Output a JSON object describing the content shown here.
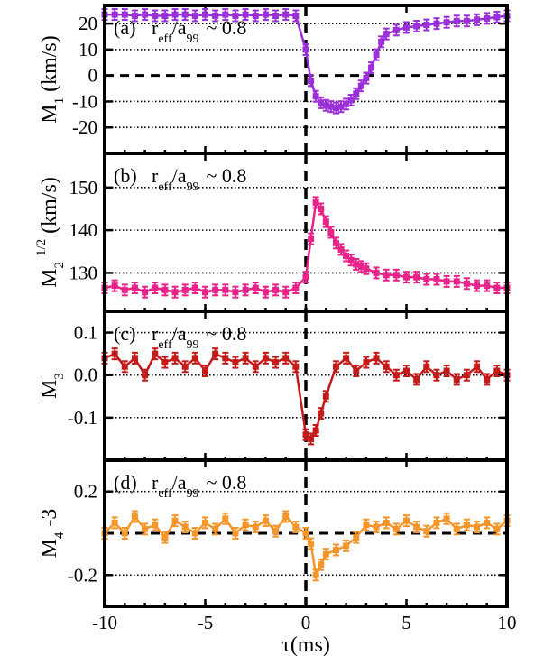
{
  "chart_data": {
    "type": "line",
    "xlabel": "τ(ms)",
    "xlim": [
      -10,
      10
    ],
    "x_ticks": [
      -10,
      -5,
      0,
      5,
      10
    ],
    "panels": [
      {
        "id": "a",
        "tag": "(a)",
        "ratio_text": "~ 0.8",
        "ylabel_main": "M",
        "ylabel_sub": "1",
        "ylabel_sup": "",
        "ylabel_unit": "(km/s)",
        "ylim": [
          -30,
          27
        ],
        "yticks": [
          -20,
          -10,
          0,
          10,
          20
        ],
        "grid_y": [
          -20,
          -10,
          10,
          20
        ],
        "zero_line": 0,
        "color": "#9b30d9",
        "series": {
          "name": "",
          "x": [
            -10,
            -9.5,
            -9,
            -8.5,
            -8,
            -7.5,
            -7,
            -6.5,
            -6,
            -5.5,
            -5,
            -4.5,
            -4,
            -3.5,
            -3,
            -2.5,
            -2,
            -1.5,
            -1,
            -0.5,
            0,
            0.25,
            0.5,
            0.75,
            1,
            1.25,
            1.5,
            1.75,
            2,
            2.25,
            2.5,
            2.75,
            3,
            3.25,
            3.5,
            3.75,
            4,
            4.5,
            5,
            5.5,
            6,
            6.5,
            7,
            7.5,
            8,
            8.5,
            9,
            9.5,
            10
          ],
          "y": [
            23.5,
            23.5,
            23.5,
            23,
            23.5,
            23,
            23,
            23.5,
            23.5,
            23,
            23.5,
            23,
            23.5,
            23,
            23.5,
            23,
            23.5,
            23,
            23.5,
            23,
            10,
            -2,
            -8,
            -10.5,
            -11.5,
            -12,
            -12.5,
            -12,
            -11,
            -9.5,
            -7,
            -4,
            -1,
            3,
            8,
            13,
            16,
            17.5,
            18.5,
            19,
            19.5,
            20,
            20.5,
            21,
            21,
            21.5,
            22,
            22.5,
            23
          ]
        }
      },
      {
        "id": "b",
        "tag": "(b)",
        "ratio_text": "~ 0.8",
        "ylabel_main": "M",
        "ylabel_sub": "2",
        "ylabel_sup": "1/2",
        "ylabel_unit": "(km/s)",
        "ylim": [
          121,
          158
        ],
        "yticks": [
          130,
          140,
          150
        ],
        "grid_y": [
          130,
          140,
          150
        ],
        "zero_line": null,
        "color": "#e8238a",
        "series": {
          "name": "",
          "x": [
            -10,
            -9.5,
            -9,
            -8.5,
            -8,
            -7.5,
            -7,
            -6.5,
            -6,
            -5.5,
            -5,
            -4.5,
            -4,
            -3.5,
            -3,
            -2.5,
            -2,
            -1.5,
            -1,
            -0.5,
            0,
            0.25,
            0.5,
            0.75,
            1,
            1.25,
            1.5,
            1.75,
            2,
            2.25,
            2.5,
            2.75,
            3,
            3.5,
            4,
            4.5,
            5,
            5.5,
            6,
            6.5,
            7,
            7.5,
            8,
            8.5,
            9,
            9.5,
            10
          ],
          "y": [
            126.5,
            127,
            126,
            126.5,
            125.5,
            126.5,
            126,
            125.5,
            126,
            126.5,
            125.5,
            126,
            126,
            125.5,
            126,
            126.5,
            125.5,
            126,
            125.5,
            126.5,
            129,
            138,
            146.5,
            145,
            142,
            139.5,
            137,
            135.5,
            134,
            133,
            132,
            131.5,
            131,
            130,
            129.5,
            129.5,
            129,
            129,
            128.5,
            128.5,
            128,
            128,
            127.5,
            127,
            127,
            126.5,
            126.5
          ]
        }
      },
      {
        "id": "c",
        "tag": "(c)",
        "ratio_text": "~ 0.8",
        "ylabel_main": "M",
        "ylabel_sub": "3",
        "ylabel_sup": "",
        "ylabel_unit": "",
        "ylim": [
          -0.2,
          0.15
        ],
        "yticks": [
          -0.1,
          0.0,
          0.1
        ],
        "tick_labels": [
          "-0.1",
          "0.0",
          "0.1"
        ],
        "grid_y": [
          -0.1,
          0.0,
          0.1
        ],
        "zero_line": null,
        "color": "#c41a1a",
        "series": {
          "name": "",
          "x": [
            -10,
            -9.5,
            -9,
            -8.5,
            -8,
            -7.5,
            -7,
            -6.5,
            -6,
            -5.5,
            -5,
            -4.5,
            -4,
            -3.5,
            -3,
            -2.5,
            -2,
            -1.5,
            -1,
            -0.5,
            0,
            0.25,
            0.5,
            0.75,
            1,
            1.5,
            2,
            2.5,
            3,
            3.5,
            4,
            4.5,
            5,
            5.5,
            6,
            6.5,
            7,
            7.5,
            8,
            8.5,
            9,
            9.5,
            10
          ],
          "y": [
            0.04,
            0.05,
            0.02,
            0.04,
            0.0,
            0.05,
            0.03,
            0.04,
            0.02,
            0.04,
            0.01,
            0.05,
            0.04,
            0.03,
            0.04,
            0.02,
            0.04,
            0.03,
            0.04,
            0.02,
            -0.14,
            -0.15,
            -0.13,
            -0.09,
            -0.05,
            0.02,
            0.04,
            0.01,
            0.03,
            0.04,
            0.02,
            0.0,
            0.01,
            -0.01,
            0.02,
            0.0,
            0.01,
            -0.01,
            0.0,
            0.02,
            -0.01,
            0.01,
            0.0
          ]
        }
      },
      {
        "id": "d",
        "tag": "(d)",
        "ratio_text": "~ 0.8",
        "ylabel_main": "M",
        "ylabel_sub": "4",
        "ylabel_sup": "",
        "ylabel_suffix": "-3",
        "ylabel_unit": "",
        "ylim": [
          -0.35,
          0.35
        ],
        "yticks": [
          -0.2,
          0.2
        ],
        "tick_labels": [
          "-0.2",
          "0.2"
        ],
        "grid_y": [
          -0.2,
          0.2
        ],
        "zero_line": 0,
        "color": "#f5952a",
        "series": {
          "name": "",
          "x": [
            -10,
            -9.5,
            -9,
            -8.5,
            -8,
            -7.5,
            -7,
            -6.5,
            -6,
            -5.5,
            -5,
            -4.5,
            -4,
            -3.5,
            -3,
            -2.5,
            -2,
            -1.5,
            -1,
            -0.5,
            0,
            0.25,
            0.5,
            0.75,
            1,
            1.5,
            2,
            2.5,
            3,
            3.5,
            4,
            4.5,
            5,
            5.5,
            6,
            6.5,
            7,
            7.5,
            8,
            8.5,
            9,
            9.5,
            10
          ],
          "y": [
            0.0,
            0.05,
            0.0,
            0.08,
            0.02,
            0.04,
            -0.02,
            0.06,
            0.03,
            0.0,
            0.05,
            0.02,
            0.07,
            0.0,
            0.04,
            0.03,
            0.06,
            0.01,
            0.08,
            0.03,
            0.0,
            -0.05,
            -0.2,
            -0.15,
            -0.1,
            -0.08,
            -0.06,
            -0.02,
            0.04,
            0.03,
            0.05,
            0.02,
            0.06,
            0.03,
            0.01,
            0.05,
            0.07,
            0.02,
            0.04,
            0.03,
            0.05,
            0.02,
            0.06
          ]
        }
      }
    ]
  }
}
